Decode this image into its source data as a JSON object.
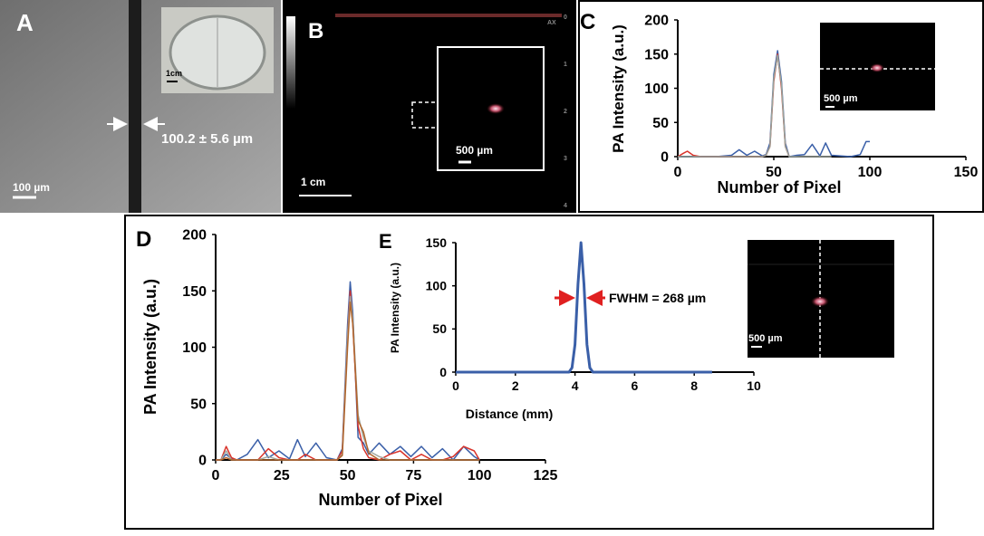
{
  "panels": {
    "a": {
      "label": "A",
      "measurement": "100.2 ± 5.6  µm",
      "scale_bar": "100 µm",
      "inset_scale_bar": "1cm"
    },
    "b": {
      "label": "B",
      "scale_bar": "1 cm",
      "inset_scale_bar": "500 µm",
      "axis_name": "AX",
      "depth_ticks": [
        "0",
        "1",
        "2",
        "3",
        "4"
      ]
    },
    "c": {
      "label": "C",
      "inset_scale_bar": "500 µm"
    },
    "d": {
      "label": "D"
    },
    "e": {
      "label": "E",
      "annotation": "FWHM = 268 µm",
      "inset_scale_bar": "500 µm"
    }
  },
  "chart_data": [
    {
      "type": "line",
      "xlabel": "Number of  Pixel",
      "ylabel": "PA Intensity (a.u.)",
      "xlim": [
        0,
        150
      ],
      "ylim": [
        0,
        200
      ],
      "xticks": [
        0,
        50,
        100,
        150
      ],
      "yticks": [
        0,
        50,
        100,
        150,
        200
      ],
      "x": [
        0,
        3,
        5,
        8,
        12,
        20,
        28,
        32,
        36,
        40,
        44,
        46,
        48,
        50,
        52,
        54,
        56,
        58,
        62,
        66,
        70,
        74,
        77,
        80,
        85,
        90,
        95,
        98,
        100
      ],
      "series": [
        {
          "color": "#3a5fa8",
          "values": [
            0,
            0,
            0,
            0,
            0,
            0,
            2,
            10,
            2,
            8,
            1,
            3,
            20,
            120,
            155,
            110,
            20,
            0,
            2,
            3,
            18,
            1,
            20,
            2,
            1,
            0,
            3,
            22,
            22
          ]
        },
        {
          "color": "#d9342b",
          "values": [
            0,
            5,
            8,
            2,
            0,
            0,
            0,
            0,
            0,
            0,
            0,
            2,
            15,
            110,
            150,
            100,
            15,
            0,
            null,
            null,
            null,
            null,
            null,
            null,
            null,
            null,
            null,
            null,
            null
          ]
        },
        {
          "color": "#9aa39a",
          "values": [
            0,
            0,
            0,
            0,
            0,
            0,
            0,
            0,
            0,
            0,
            0,
            2,
            15,
            115,
            148,
            105,
            15,
            0,
            0,
            0,
            0,
            0,
            0,
            0,
            null,
            null,
            null,
            null,
            null
          ]
        }
      ]
    },
    {
      "type": "line",
      "xlabel": "Number of Pixel",
      "ylabel": "PA Intensity (a.u.)",
      "xlim": [
        0,
        125
      ],
      "ylim": [
        0,
        200
      ],
      "xticks": [
        0,
        25,
        50,
        75,
        100,
        125
      ],
      "yticks": [
        0,
        50,
        100,
        150,
        200
      ],
      "x": [
        0,
        2,
        4,
        6,
        8,
        12,
        16,
        20,
        24,
        28,
        31,
        34,
        38,
        42,
        46,
        48,
        50,
        51,
        52,
        54,
        56,
        58,
        62,
        66,
        70,
        74,
        78,
        82,
        86,
        90,
        94,
        98,
        100
      ],
      "series": [
        {
          "color": "#3a5fa8",
          "values": [
            0,
            0,
            5,
            1,
            0,
            5,
            18,
            2,
            8,
            1,
            18,
            3,
            15,
            2,
            0,
            10,
            120,
            158,
            130,
            20,
            15,
            5,
            15,
            5,
            12,
            3,
            12,
            2,
            10,
            0,
            12,
            3,
            0
          ]
        },
        {
          "color": "#d9342b",
          "values": [
            0,
            0,
            12,
            2,
            0,
            0,
            0,
            10,
            2,
            0,
            0,
            5,
            0,
            0,
            0,
            8,
            110,
            150,
            120,
            30,
            10,
            2,
            0,
            5,
            8,
            0,
            5,
            0,
            0,
            3,
            12,
            8,
            0
          ]
        },
        {
          "color": "#a3a8a0",
          "values": [
            0,
            0,
            8,
            0,
            0,
            0,
            0,
            3,
            0,
            0,
            0,
            0,
            0,
            0,
            0,
            5,
            110,
            145,
            125,
            40,
            20,
            8,
            3,
            0,
            0,
            0,
            0,
            0,
            0,
            0,
            0,
            0,
            0
          ]
        },
        {
          "color": "#b0652b",
          "values": [
            0,
            0,
            2,
            0,
            0,
            0,
            0,
            0,
            0,
            0,
            0,
            0,
            0,
            0,
            0,
            4,
            100,
            140,
            120,
            35,
            25,
            6,
            0,
            0,
            0,
            0,
            0,
            0,
            0,
            0,
            0,
            0,
            0
          ]
        }
      ]
    },
    {
      "type": "line",
      "xlabel": "Distance (mm)",
      "ylabel": "PA Intensity (a.u.)",
      "xlim": [
        0,
        10
      ],
      "ylim": [
        0,
        150
      ],
      "xticks": [
        0,
        2,
        4,
        6,
        8,
        10
      ],
      "yticks": [
        0,
        50,
        100,
        150
      ],
      "x": [
        0,
        3.8,
        3.9,
        4.0,
        4.1,
        4.2,
        4.3,
        4.4,
        4.5,
        4.6,
        8.6
      ],
      "series": [
        {
          "color": "#3a5fa8",
          "values": [
            0,
            0,
            5,
            32,
            102,
            150,
            102,
            32,
            5,
            0,
            0
          ]
        }
      ]
    }
  ]
}
